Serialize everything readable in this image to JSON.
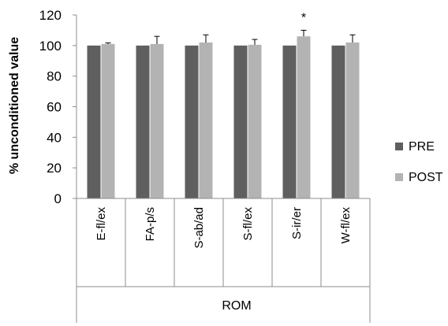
{
  "chart_data": {
    "type": "bar",
    "title": "",
    "xlabel": "ROM",
    "ylabel": "% unconditioned value",
    "ylim": [
      0,
      120
    ],
    "yticks": [
      0,
      20,
      40,
      60,
      80,
      100,
      120
    ],
    "categories": [
      "E-fl/ex",
      "FA-p/s",
      "S-ab/ad",
      "S-fl/ex",
      "S-ir/er",
      "W-fl/ex"
    ],
    "series": [
      {
        "name": "PRE",
        "color": "#5f5f5f",
        "values": [
          100,
          100,
          100,
          100,
          100,
          100
        ],
        "errors": [
          0,
          0,
          0,
          0,
          0,
          0
        ]
      },
      {
        "name": "POST",
        "color": "#b3b3b3",
        "values": [
          101,
          101,
          102,
          100.5,
          106,
          102
        ],
        "errors": [
          0.7,
          5,
          5,
          3.5,
          4,
          5
        ]
      }
    ],
    "annotations": [
      {
        "category": "S-ir/er",
        "text": "*"
      }
    ],
    "legend_position": "right",
    "grid": false
  }
}
